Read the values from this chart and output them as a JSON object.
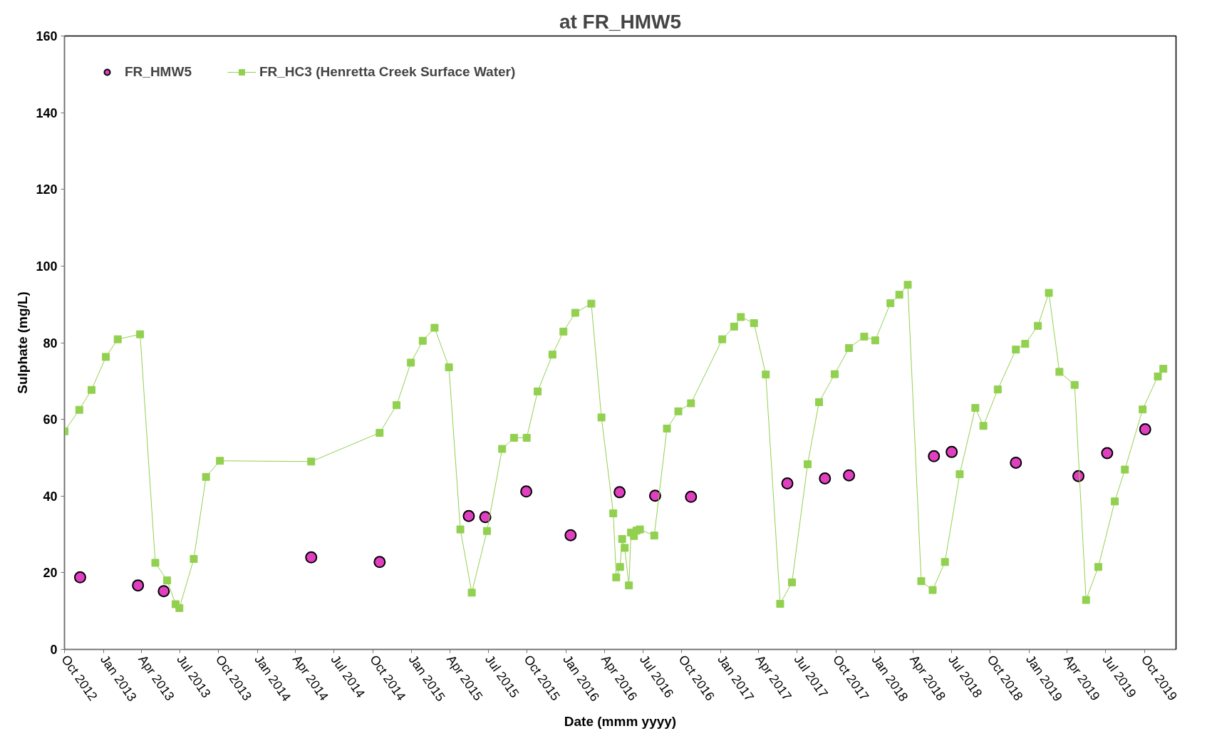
{
  "chart_data": {
    "type": "scatter",
    "title": "at FR_HMW5",
    "xlabel": "Date (mmm yyyy)",
    "ylabel": "Sulphate (mg/L)",
    "xlim": [
      "2012-10-01",
      "2019-12-15"
    ],
    "xticks": [
      {
        "value": "2012-10-01",
        "label": "Oct 2012"
      },
      {
        "value": "2013-01-01",
        "label": "Jan 2013"
      },
      {
        "value": "2013-04-01",
        "label": "Apr 2013"
      },
      {
        "value": "2013-07-01",
        "label": "Jul 2013"
      },
      {
        "value": "2013-10-01",
        "label": "Oct 2013"
      },
      {
        "value": "2014-01-01",
        "label": "Jan 2014"
      },
      {
        "value": "2014-04-01",
        "label": "Apr 2014"
      },
      {
        "value": "2014-07-01",
        "label": "Jul 2014"
      },
      {
        "value": "2014-10-01",
        "label": "Oct 2014"
      },
      {
        "value": "2015-01-01",
        "label": "Jan 2015"
      },
      {
        "value": "2015-04-01",
        "label": "Apr 2015"
      },
      {
        "value": "2015-07-01",
        "label": "Jul 2015"
      },
      {
        "value": "2015-10-01",
        "label": "Oct 2015"
      },
      {
        "value": "2016-01-01",
        "label": "Jan 2016"
      },
      {
        "value": "2016-04-01",
        "label": "Apr 2016"
      },
      {
        "value": "2016-07-01",
        "label": "Jul 2016"
      },
      {
        "value": "2016-10-01",
        "label": "Oct 2016"
      },
      {
        "value": "2017-01-01",
        "label": "Jan 2017"
      },
      {
        "value": "2017-04-01",
        "label": "Apr 2017"
      },
      {
        "value": "2017-07-01",
        "label": "Jul 2017"
      },
      {
        "value": "2017-10-01",
        "label": "Oct 2017"
      },
      {
        "value": "2018-01-01",
        "label": "Jan 2018"
      },
      {
        "value": "2018-04-01",
        "label": "Apr 2018"
      },
      {
        "value": "2018-07-01",
        "label": "Jul 2018"
      },
      {
        "value": "2018-10-01",
        "label": "Oct 2018"
      },
      {
        "value": "2019-01-01",
        "label": "Jan 2019"
      },
      {
        "value": "2019-04-01",
        "label": "Apr 2019"
      },
      {
        "value": "2019-07-01",
        "label": "Jul 2019"
      },
      {
        "value": "2019-10-01",
        "label": "Oct 2019"
      }
    ],
    "ylim": [
      0,
      160
    ],
    "yticks": [
      0,
      20,
      40,
      60,
      80,
      100,
      120,
      140,
      160
    ],
    "legend": "top left",
    "series": [
      {
        "name": "FR_HMW5",
        "marker": "circle",
        "color": "#e040c0",
        "x": [
          "2012-11-07",
          "2013-03-24",
          "2013-05-24",
          "2014-05-08",
          "2014-10-17",
          "2015-05-16",
          "2015-06-24",
          "2015-09-29",
          "2016-01-12",
          "2016-05-07",
          "2016-07-30",
          "2016-10-23",
          "2017-06-08",
          "2017-09-05",
          "2017-11-01",
          "2018-05-21",
          "2018-07-02",
          "2018-12-01",
          "2019-04-28",
          "2019-07-05",
          "2019-10-03"
        ],
        "values": [
          18.8,
          16.7,
          15.2,
          24.0,
          22.8,
          34.8,
          34.5,
          41.2,
          29.8,
          41.0,
          40.1,
          39.8,
          43.3,
          44.6,
          45.4,
          50.4,
          51.5,
          48.7,
          45.2,
          51.2,
          57.4
        ]
      },
      {
        "name": "FR_HC3 (Henretta Creek Surface Water)",
        "type": "line",
        "marker": "square",
        "color": "#92d050",
        "x": [
          "2012-10-01",
          "2012-11-05",
          "2012-12-04",
          "2013-01-07",
          "2013-02-04",
          "2013-03-29",
          "2013-05-04",
          "2013-06-01",
          "2013-06-21",
          "2013-06-30",
          "2013-08-03",
          "2013-09-01",
          "2013-10-04",
          "2014-05-08",
          "2014-10-17",
          "2014-11-26",
          "2014-12-30",
          "2015-01-27",
          "2015-02-24",
          "2015-03-30",
          "2015-04-26",
          "2015-05-23",
          "2015-06-28",
          "2015-08-03",
          "2015-08-31",
          "2015-09-30",
          "2015-10-26",
          "2015-11-30",
          "2015-12-26",
          "2016-01-23",
          "2016-03-01",
          "2016-03-25",
          "2016-04-22",
          "2016-04-29",
          "2016-05-08",
          "2016-05-13",
          "2016-05-19",
          "2016-05-29",
          "2016-06-03",
          "2016-06-10",
          "2016-06-16",
          "2016-06-24",
          "2016-07-28",
          "2016-08-27",
          "2016-09-23",
          "2016-10-23",
          "2017-01-05",
          "2017-02-02",
          "2017-02-18",
          "2017-03-21",
          "2017-04-18",
          "2017-05-22",
          "2017-06-19",
          "2017-07-26",
          "2017-08-22",
          "2017-09-28",
          "2017-11-01",
          "2017-12-07",
          "2018-01-02",
          "2018-02-07",
          "2018-02-28",
          "2018-03-20",
          "2018-04-21",
          "2018-05-18",
          "2018-06-16",
          "2018-07-21",
          "2018-08-27",
          "2018-09-15",
          "2018-10-19",
          "2018-12-01",
          "2018-12-23",
          "2019-01-22",
          "2019-02-17",
          "2019-03-14",
          "2019-04-19",
          "2019-05-16",
          "2019-06-14",
          "2019-07-23",
          "2019-08-16",
          "2019-09-27",
          "2019-11-02",
          "2019-11-15"
        ],
        "values": [
          56.9,
          62.5,
          67.7,
          76.3,
          80.9,
          82.2,
          22.6,
          18.0,
          11.8,
          10.8,
          23.6,
          45.0,
          49.2,
          49.0,
          56.5,
          63.7,
          74.8,
          80.5,
          83.9,
          73.6,
          31.3,
          14.8,
          30.9,
          52.3,
          55.2,
          55.2,
          67.3,
          76.9,
          82.9,
          87.8,
          90.2,
          60.5,
          35.5,
          18.8,
          21.5,
          28.8,
          26.5,
          16.7,
          30.5,
          29.6,
          31.0,
          31.3,
          29.7,
          57.6,
          62.1,
          64.2,
          80.9,
          84.2,
          86.7,
          85.1,
          71.7,
          11.9,
          17.5,
          48.3,
          64.5,
          71.8,
          78.6,
          81.6,
          80.6,
          90.3,
          92.5,
          95.1,
          17.8,
          15.5,
          22.8,
          45.7,
          63.0,
          58.3,
          67.8,
          78.2,
          79.7,
          84.4,
          93.0,
          72.4,
          69.0,
          12.9,
          21.5,
          38.6,
          46.9,
          62.6,
          71.2,
          73.2
        ]
      }
    ]
  }
}
